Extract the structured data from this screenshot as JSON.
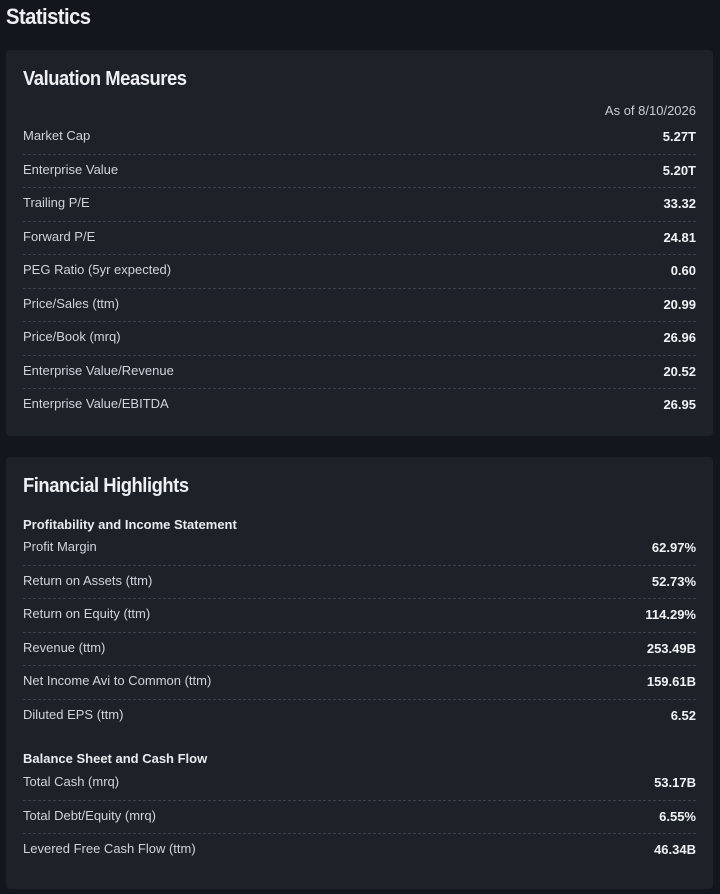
{
  "page": {
    "title": "Statistics"
  },
  "valuation": {
    "title": "Valuation Measures",
    "as_of": "As of 8/10/2026",
    "rows": [
      {
        "label": "Market Cap",
        "value": "5.27T"
      },
      {
        "label": "Enterprise Value",
        "value": "5.20T"
      },
      {
        "label": "Trailing P/E",
        "value": "33.32"
      },
      {
        "label": "Forward P/E",
        "value": "24.81"
      },
      {
        "label": "PEG Ratio (5yr expected)",
        "value": "0.60"
      },
      {
        "label": "Price/Sales (ttm)",
        "value": "20.99"
      },
      {
        "label": "Price/Book (mrq)",
        "value": "26.96"
      },
      {
        "label": "Enterprise Value/Revenue",
        "value": "20.52"
      },
      {
        "label": "Enterprise Value/EBITDA",
        "value": "26.95"
      }
    ]
  },
  "financial": {
    "title": "Financial Highlights",
    "profitability": {
      "heading": "Profitability and Income Statement",
      "rows": [
        {
          "label": "Profit Margin",
          "value": "62.97%"
        },
        {
          "label": "Return on Assets (ttm)",
          "value": "52.73%"
        },
        {
          "label": "Return on Equity (ttm)",
          "value": "114.29%"
        },
        {
          "label": "Revenue (ttm)",
          "value": "253.49B"
        },
        {
          "label": "Net Income Avi to Common (ttm)",
          "value": "159.61B"
        },
        {
          "label": "Diluted EPS (ttm)",
          "value": "6.52"
        }
      ]
    },
    "balance": {
      "heading": "Balance Sheet and Cash Flow",
      "rows": [
        {
          "label": "Total Cash (mrq)",
          "value": "53.17B"
        },
        {
          "label": "Total Debt/Equity (mrq)",
          "value": "6.55%"
        },
        {
          "label": "Levered Free Cash Flow (ttm)",
          "value": "46.34B"
        }
      ]
    }
  }
}
